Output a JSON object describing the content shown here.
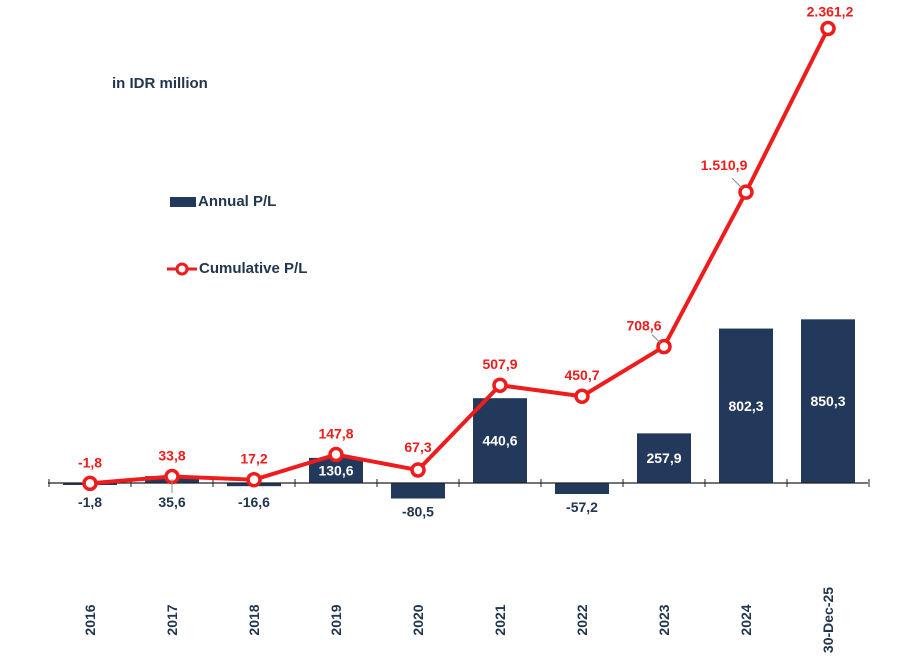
{
  "unit_note": "in IDR million",
  "legend": {
    "bar_label": "Annual P/L",
    "line_label": "Cumulative P/L"
  },
  "colors": {
    "bar": "#22395c",
    "line": "#ee1c1c",
    "bar_text_inside": "#ffffff",
    "bar_text_outside": "#22364f",
    "line_text": "#ee1c1c",
    "axis": "#222222"
  },
  "chart_data": {
    "type": "bar+line",
    "title": "",
    "xlabel": "",
    "ylabel": "",
    "categories": [
      "2016",
      "2017",
      "2018",
      "2019",
      "2020",
      "2021",
      "2022",
      "2023",
      "2024",
      "30-Dec-25"
    ],
    "series": [
      {
        "name": "Annual P/L",
        "type": "bar",
        "values": [
          -1.8,
          35.6,
          -16.6,
          130.6,
          -80.5,
          440.6,
          -57.2,
          257.9,
          802.3,
          850.3
        ],
        "labels": [
          "-1,8",
          "35,6",
          "-16,6",
          "130,6",
          "-80,5",
          "440,6",
          "-57,2",
          "257,9",
          "802,3",
          "850,3"
        ]
      },
      {
        "name": "Cumulative P/L",
        "type": "line",
        "values": [
          -1.8,
          33.8,
          17.2,
          147.8,
          67.3,
          507.9,
          450.7,
          708.6,
          1510.9,
          2361.2
        ],
        "labels": [
          "-1,8",
          "33,8",
          "17,2",
          "147,8",
          "67,3",
          "507,9",
          "450,7",
          "708,6",
          "1.510,9",
          "2.361,2"
        ]
      }
    ],
    "grid": false,
    "legend_position": "upper-left"
  }
}
